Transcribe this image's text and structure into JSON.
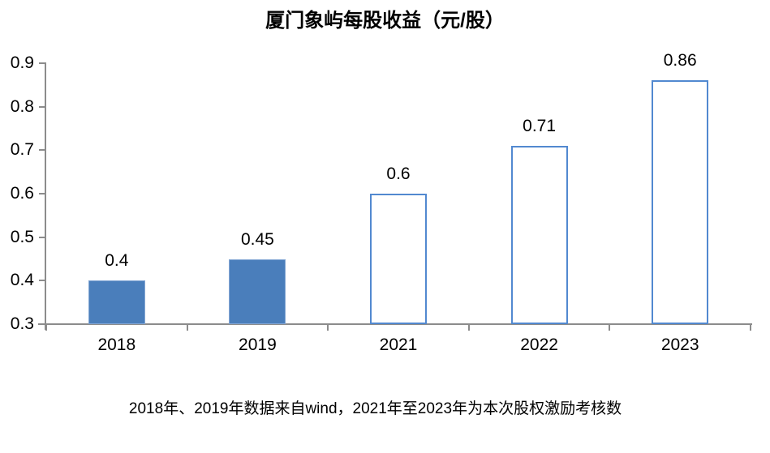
{
  "title": "厦门象屿每股收益（元/股）",
  "footer": "2018年、2019年数据来自wind，2021年至2023年为本次股权激励考核数",
  "colors": {
    "solid_bar_fill": "#4A7EBB",
    "solid_bar_edge": "#84A7D4",
    "outline_bar_stroke": "#5289D0",
    "outline_bar_fill": "#FFFFFF",
    "axis": "#8C8C8C",
    "text": "#000000"
  },
  "chart_data": {
    "type": "bar",
    "title": "厦门象屿每股收益（元/股）",
    "categories": [
      "2018",
      "2019",
      "2021",
      "2022",
      "2023"
    ],
    "values": [
      0.4,
      0.45,
      0.6,
      0.71,
      0.86
    ],
    "data_labels": [
      "0.4",
      "0.45",
      "0.6",
      "0.71",
      "0.86"
    ],
    "bar_styles": [
      "solid",
      "solid",
      "outline",
      "outline",
      "outline"
    ],
    "xlabel": "",
    "ylabel": "",
    "ylim": [
      0.3,
      0.9
    ],
    "y_ticks": [
      0.3,
      0.4,
      0.5,
      0.6,
      0.7,
      0.8,
      0.9
    ],
    "y_tick_labels": [
      "0.3",
      "0.4",
      "0.5",
      "0.6",
      "0.7",
      "0.8",
      "0.9"
    ],
    "grid": false,
    "legend_position": "none",
    "annotation": "2018年、2019年数据来自wind，2021年至2023年为本次股权激励考核数"
  }
}
